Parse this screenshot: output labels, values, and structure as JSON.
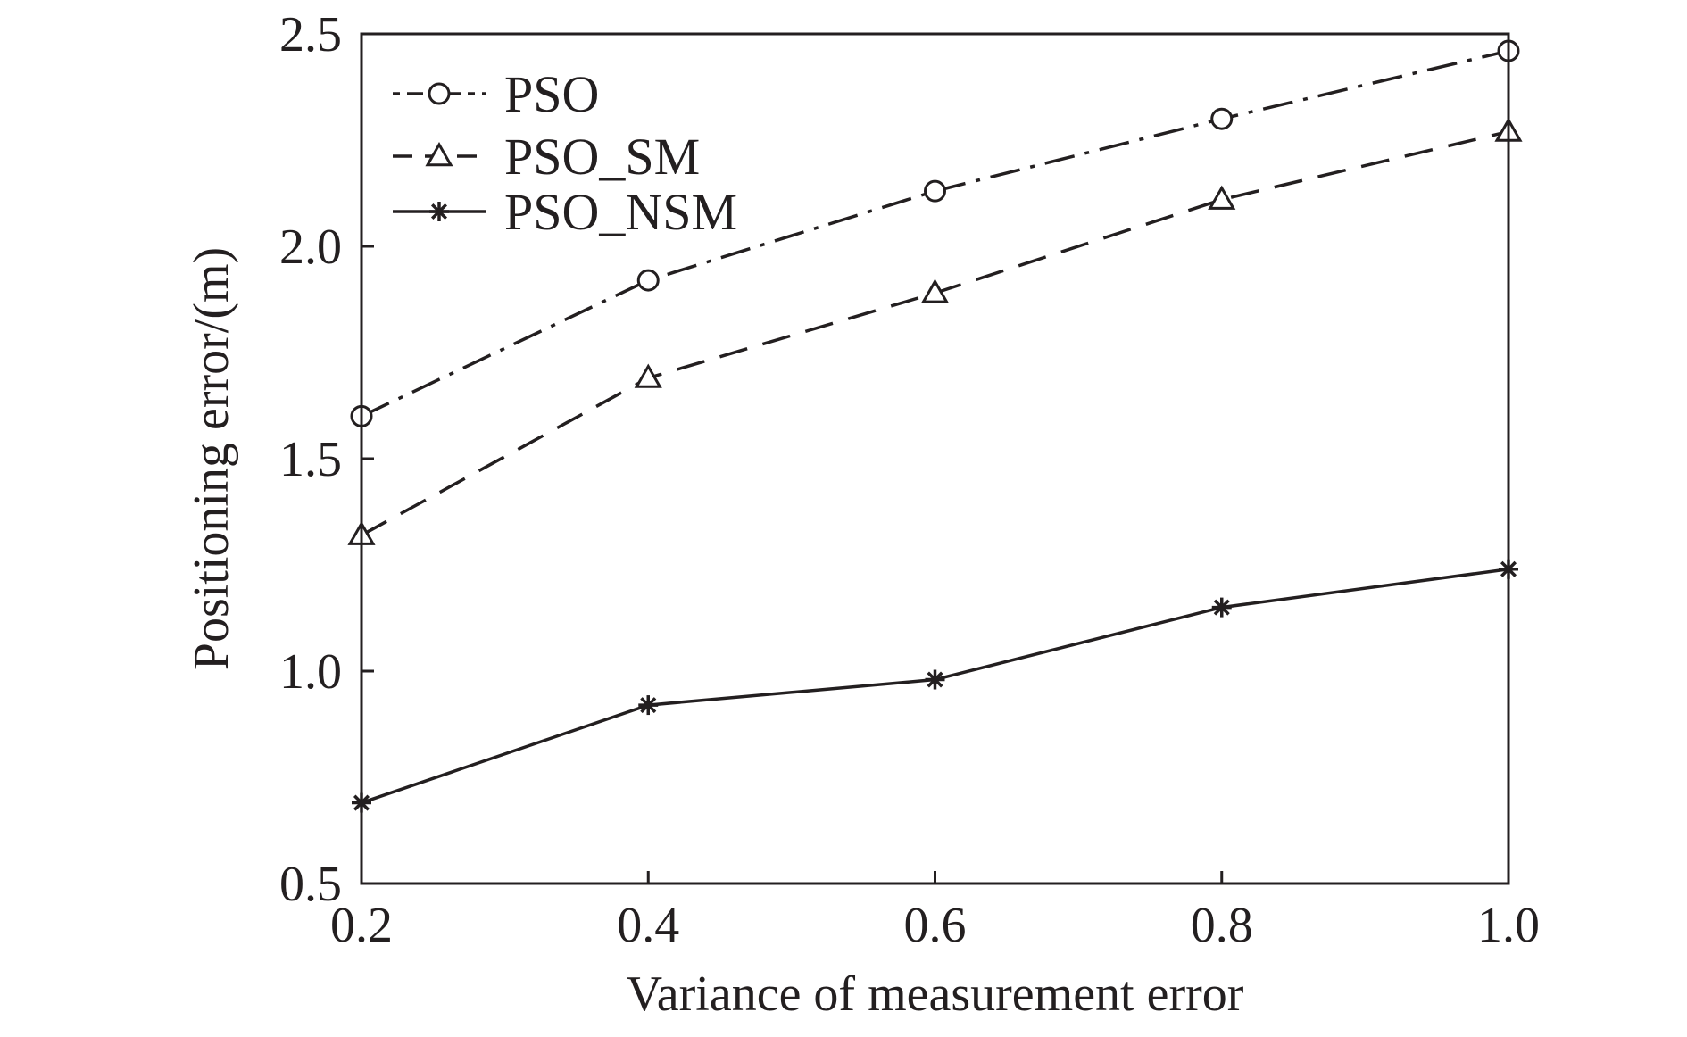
{
  "chart_data": {
    "type": "line",
    "title": "",
    "xlabel": "Variance of measurement error",
    "ylabel": "Positioning error/(m)",
    "x": [
      0.2,
      0.4,
      0.6,
      0.8,
      1.0
    ],
    "x_tick_labels": [
      "0.2",
      "0.4",
      "0.6",
      "0.8",
      "1.0"
    ],
    "y_tick_values": [
      0.5,
      1.0,
      1.5,
      2.0,
      2.5
    ],
    "y_tick_labels": [
      "0.5",
      "1.0",
      "1.5",
      "2.0",
      "2.5"
    ],
    "xlim": [
      0.2,
      1.0
    ],
    "ylim": [
      0.5,
      2.5
    ],
    "grid": false,
    "legend_position": "top-left",
    "series": [
      {
        "name": "PSO",
        "values": [
          1.6,
          1.92,
          2.13,
          2.3,
          2.46
        ],
        "marker": "circle",
        "line_style": "dash-dot",
        "color": "#231f20"
      },
      {
        "name": "PSO_SM",
        "values": [
          1.32,
          1.69,
          1.89,
          2.11,
          2.27
        ],
        "marker": "triangle",
        "line_style": "dashed",
        "color": "#231f20"
      },
      {
        "name": "PSO_NSM",
        "values": [
          0.69,
          0.92,
          0.98,
          1.15,
          1.24
        ],
        "marker": "asterisk",
        "line_style": "solid",
        "color": "#231f20"
      }
    ]
  }
}
